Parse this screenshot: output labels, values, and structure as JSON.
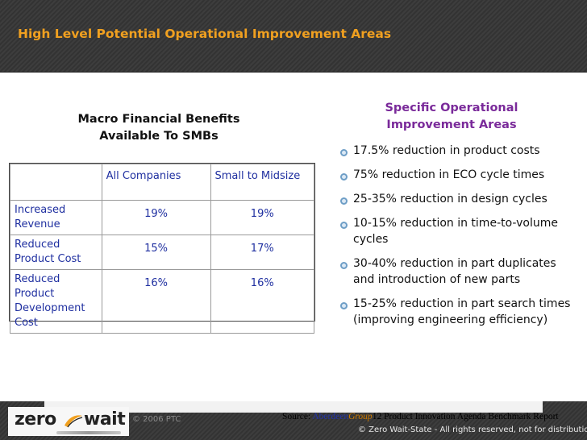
{
  "header": {
    "title": "High Level Potential Operational Improvement Areas"
  },
  "macro": {
    "title_line1": "Macro Financial Benefits",
    "title_line2": "Available To SMBs"
  },
  "table": {
    "headers": [
      "",
      "All Companies",
      "Small to Midsize"
    ],
    "rows": [
      {
        "label": "Increased Revenue",
        "all": "19%",
        "smb": "19%"
      },
      {
        "label": "Reduced Product Cost",
        "all": "15%",
        "smb": "17%"
      },
      {
        "label": "Reduced Product Development Cost",
        "all": "16%",
        "smb": "16%"
      }
    ]
  },
  "specific": {
    "title_line1": "Specific Operational",
    "title_line2": "Improvement Areas",
    "items": [
      "17.5% reduction in product costs",
      "75% reduction in ECO cycle times",
      "25-35% reduction in design cycles",
      "10-15% reduction in time-to-volume cycles",
      "30-40% reduction in part duplicates and introduction of new parts",
      "15-25% reduction in part search times (improving engineering efficiency)"
    ]
  },
  "footer": {
    "logo_left": "zero",
    "logo_right": "wait",
    "ptc_copyright": "© 2006 PTC",
    "source_prefix": "Source: ",
    "source_aberdeen": "Aberdeen",
    "source_group": "Group",
    "source_page": "12",
    "source_rest": " Product Innovation Agenda Benchmark Report",
    "zws_copyright": "© Zero Wait-State - All rights reserved, not for distribution"
  },
  "colors": {
    "header_title": "#f0a020",
    "specific_title": "#7a2a9a",
    "table_text": "#1f2fa0",
    "bullet": "#6e9ec6"
  }
}
